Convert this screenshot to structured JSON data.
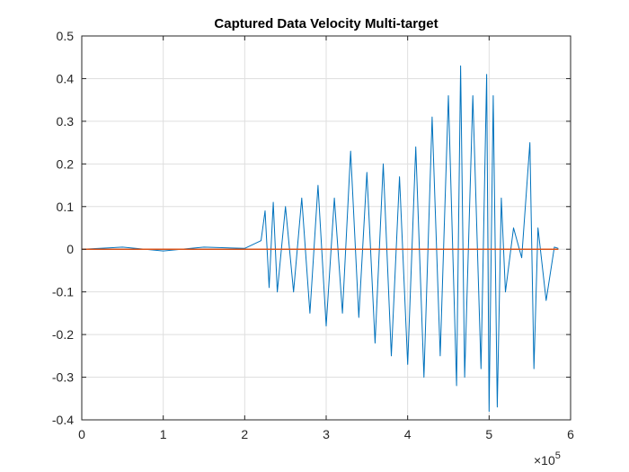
{
  "chart_data": {
    "type": "line",
    "title": "Captured Data Velocity Multi-target",
    "xlabel": "",
    "ylabel": "",
    "xlim": [
      0,
      6
    ],
    "ylim": [
      -0.4,
      0.5
    ],
    "x_exponent_label": "×10",
    "x_exponent_power": "5",
    "x_ticks": [
      0,
      1,
      2,
      3,
      4,
      5,
      6
    ],
    "x_tick_labels": [
      "0",
      "1",
      "2",
      "3",
      "4",
      "5",
      "6"
    ],
    "y_ticks": [
      -0.4,
      -0.3,
      -0.2,
      -0.1,
      0,
      0.1,
      0.2,
      0.3,
      0.4,
      0.5
    ],
    "y_tick_labels": [
      "-0.4",
      "-0.3",
      "-0.2",
      "-0.1",
      "0",
      "0.1",
      "0.2",
      "0.3",
      "0.4",
      "0.5"
    ],
    "grid": true,
    "series": [
      {
        "color": "#0072BD",
        "x": [
          0,
          0.5,
          1.0,
          1.5,
          2.0,
          2.2,
          2.25,
          2.3,
          2.35,
          2.4,
          2.5,
          2.6,
          2.7,
          2.8,
          2.9,
          3.0,
          3.1,
          3.2,
          3.3,
          3.4,
          3.5,
          3.6,
          3.7,
          3.8,
          3.9,
          4.0,
          4.1,
          4.2,
          4.3,
          4.4,
          4.5,
          4.6,
          4.65,
          4.7,
          4.8,
          4.9,
          4.97,
          5.0,
          5.05,
          5.1,
          5.15,
          5.2,
          5.3,
          5.4,
          5.5,
          5.55,
          5.6,
          5.7,
          5.8,
          5.85
        ],
        "values": [
          0,
          0.005,
          -0.004,
          0.005,
          0.002,
          0.02,
          0.09,
          -0.09,
          0.11,
          -0.1,
          0.1,
          -0.1,
          0.12,
          -0.15,
          0.15,
          -0.18,
          0.12,
          -0.15,
          0.23,
          -0.16,
          0.18,
          -0.22,
          0.2,
          -0.25,
          0.17,
          -0.27,
          0.24,
          -0.3,
          0.31,
          -0.25,
          0.36,
          -0.32,
          0.43,
          -0.3,
          0.36,
          -0.28,
          0.41,
          -0.38,
          0.36,
          -0.37,
          0.12,
          -0.1,
          0.05,
          -0.02,
          0.25,
          -0.28,
          0.05,
          -0.12,
          0.005,
          0.002
        ]
      },
      {
        "color": "#D95319",
        "x": [
          0,
          5.85
        ],
        "values": [
          0,
          0
        ]
      }
    ]
  }
}
